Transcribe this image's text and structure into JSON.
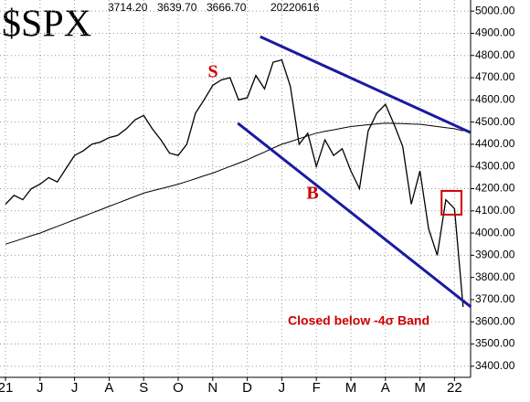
{
  "chart_data": {
    "type": "line",
    "title": "$SPX",
    "header": [
      "3714.20",
      "3639.70",
      "3666.70",
      "20220616"
    ],
    "categories": [
      "21",
      null,
      null,
      null,
      "J",
      null,
      null,
      null,
      "J",
      null,
      null,
      null,
      "A",
      null,
      null,
      null,
      "S",
      null,
      null,
      null,
      "O",
      null,
      null,
      null,
      "N",
      null,
      null,
      null,
      "D",
      null,
      null,
      null,
      "J",
      null,
      null,
      null,
      "F",
      null,
      null,
      null,
      "M",
      null,
      null,
      null,
      "A",
      null,
      null,
      null,
      "M",
      null,
      null,
      null,
      "22",
      null
    ],
    "series": [
      {
        "color": "#000000",
        "values": [
          4130,
          4170,
          4150,
          4200,
          4220,
          4250,
          4230,
          4290,
          4350,
          4370,
          4400,
          4410,
          4430,
          4440,
          4470,
          4510,
          4530,
          4470,
          4420,
          4360,
          4350,
          4400,
          4540,
          4600,
          4665,
          4690,
          4700,
          4600,
          4610,
          4710,
          4650,
          4770,
          4780,
          4660,
          4400,
          4450,
          4300,
          4420,
          4350,
          4380,
          4280,
          4200,
          4460,
          4540,
          4580,
          4490,
          4390,
          4130,
          4280,
          4020,
          3900,
          4150,
          4110,
          3667
        ]
      },
      {
        "color": "#000000",
        "values": [
          3950,
          3962,
          3975,
          3988,
          4000,
          4015,
          4030,
          4045,
          4060,
          4075,
          4090,
          4105,
          4120,
          4135,
          4150,
          4165,
          4180,
          4190,
          4200,
          4210,
          4220,
          4232,
          4245,
          4258,
          4270,
          4285,
          4300,
          4315,
          4330,
          4348,
          4365,
          4383,
          4400,
          4412,
          4425,
          4438,
          4450,
          4458,
          4465,
          4473,
          4480,
          4484,
          4488,
          4492,
          4495,
          4494,
          4493,
          4491,
          4490,
          4485,
          4480,
          4475,
          4470,
          4460
        ]
      }
    ],
    "trend_lines": [
      {
        "color": "#1a1aa0",
        "x": [
          29.5,
          53.9
        ],
        "y": [
          4885,
          4452
        ]
      },
      {
        "color": "#1a1aa0",
        "x": [
          26.9,
          53.9
        ],
        "y": [
          4495,
          3667
        ]
      }
    ],
    "highlight_box": {
      "color": "#cc0000",
      "x": [
        50.5,
        52.8
      ],
      "y": [
        4083,
        4190
      ]
    },
    "annotations": [
      {
        "text": "S"
      },
      {
        "text": "B"
      },
      {
        "text": "Closed below -4σ Band"
      }
    ],
    "annotation_color": "#cc0000",
    "ylim": [
      3350,
      5050
    ],
    "yticks": [
      {
        "value": 3400,
        "label": "3400.00"
      },
      {
        "value": 3500,
        "label": "3500.00"
      },
      {
        "value": 3600,
        "label": "3600.00"
      },
      {
        "value": 3700,
        "label": "3700.00"
      },
      {
        "value": 3800,
        "label": "3800.00"
      },
      {
        "value": 3900,
        "label": "3900.00"
      },
      {
        "value": 4000,
        "label": "4000.00"
      },
      {
        "value": 4100,
        "label": "4100.00"
      },
      {
        "value": 4200,
        "label": "4200.00"
      },
      {
        "value": 4300,
        "label": "4300.00"
      },
      {
        "value": 4400,
        "label": "4400.00"
      },
      {
        "value": 4500,
        "label": "4500.00"
      },
      {
        "value": 4600,
        "label": "4600.00"
      },
      {
        "value": 4700,
        "label": "4700.00"
      },
      {
        "value": 4800,
        "label": "4800.00"
      },
      {
        "value": 4900,
        "label": "4900.00"
      },
      {
        "value": 5000,
        "label": "5000.00"
      }
    ],
    "grid": true
  }
}
